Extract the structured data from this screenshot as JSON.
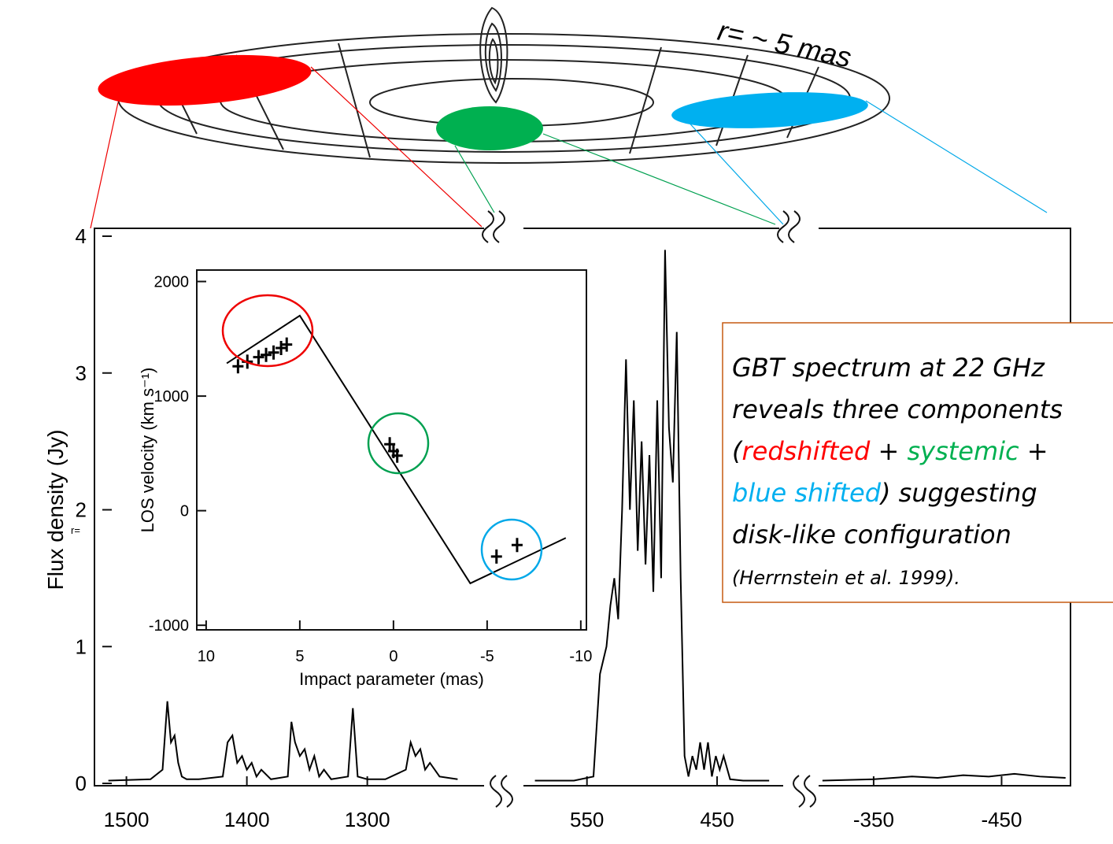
{
  "diagram": {
    "radius_label": "r= ~ 5 mas"
  },
  "stray_label": "r=",
  "text_box": {
    "lines": [
      [
        {
          "text": "GBT spectrum at 22 GHz",
          "color": "#000000"
        }
      ],
      [
        {
          "text": "reveals three components",
          "color": "#000000"
        }
      ],
      [
        {
          "text": "(",
          "color": "#000000"
        },
        {
          "text": "redshifted",
          "color": "#ff0000"
        },
        {
          "text": " + ",
          "color": "#000000"
        },
        {
          "text": "systemic",
          "color": "#00b050"
        },
        {
          "text": " +",
          "color": "#000000"
        }
      ],
      [
        {
          "text": "blue shifted",
          "color": "#00b0f0"
        },
        {
          "text": ") suggesting",
          "color": "#000000"
        }
      ],
      [
        {
          "text": "disk-like configuration",
          "color": "#000000"
        }
      ]
    ],
    "citation": "(Herrnstein et al. 1999).",
    "border_color": "#c55a11"
  },
  "chart_data": [
    {
      "type": "line",
      "y_label": "Flux density (Jy)",
      "ylim": [
        0,
        4
      ],
      "yticks": [
        0,
        1,
        2,
        3,
        4
      ],
      "xlim": [
        1520,
        1205
      ],
      "xticks": [
        1500,
        1400,
        1300
      ],
      "series": [
        {
          "color": "#000000",
          "x": [
            1515,
            1480,
            1470,
            1466,
            1463,
            1460,
            1457,
            1454,
            1450,
            1440,
            1420,
            1416,
            1412,
            1408,
            1404,
            1400,
            1396,
            1392,
            1388,
            1380,
            1366,
            1363,
            1360,
            1356,
            1352,
            1348,
            1344,
            1340,
            1336,
            1330,
            1316,
            1312,
            1308,
            1300,
            1285,
            1268,
            1264,
            1260,
            1256,
            1252,
            1248,
            1240,
            1225
          ],
          "values": [
            0.02,
            0.03,
            0.1,
            0.6,
            0.3,
            0.35,
            0.15,
            0.05,
            0.03,
            0.03,
            0.05,
            0.3,
            0.35,
            0.15,
            0.2,
            0.1,
            0.15,
            0.05,
            0.1,
            0.03,
            0.05,
            0.45,
            0.3,
            0.2,
            0.25,
            0.1,
            0.2,
            0.05,
            0.1,
            0.03,
            0.05,
            0.55,
            0.05,
            0.03,
            0.03,
            0.1,
            0.3,
            0.2,
            0.25,
            0.1,
            0.15,
            0.05,
            0.03
          ]
        }
      ]
    },
    {
      "type": "line",
      "ylim": [
        0,
        4
      ],
      "xlim": [
        597,
        398
      ],
      "xticks": [
        550,
        450
      ],
      "series": [
        {
          "color": "#000000",
          "x": [
            590,
            560,
            545,
            540,
            535,
            532,
            529,
            526,
            523,
            520,
            517,
            514,
            511,
            508,
            505,
            502,
            499,
            496,
            493,
            490,
            487,
            484,
            481,
            478,
            475,
            472,
            469,
            466,
            463,
            460,
            457,
            454,
            451,
            448,
            445,
            440,
            430,
            410
          ],
          "values": [
            0.02,
            0.02,
            0.05,
            0.8,
            1.0,
            1.3,
            1.5,
            1.2,
            2.0,
            3.1,
            2.0,
            2.8,
            1.7,
            2.5,
            1.6,
            2.4,
            1.4,
            2.8,
            1.5,
            3.9,
            2.6,
            2.2,
            3.3,
            1.5,
            0.2,
            0.05,
            0.2,
            0.1,
            0.3,
            0.1,
            0.3,
            0.05,
            0.2,
            0.1,
            0.2,
            0.03,
            0.02,
            0.02
          ]
        }
      ]
    },
    {
      "type": "line",
      "ylim": [
        0,
        4
      ],
      "xlim": [
        -307,
        -502
      ],
      "xticks": [
        -350,
        -450
      ],
      "series": [
        {
          "color": "#000000",
          "x": [
            -310,
            -350,
            -380,
            -400,
            -420,
            -440,
            -460,
            -480,
            -500
          ],
          "values": [
            0.02,
            0.03,
            0.05,
            0.04,
            0.06,
            0.05,
            0.07,
            0.05,
            0.04
          ]
        }
      ]
    },
    {
      "type": "line",
      "x_label": "Impact parameter (mas)",
      "y_label": "LOS velocity (km s⁻¹)",
      "xlim": [
        10.5,
        -10.3
      ],
      "xticks": [
        10,
        5,
        0,
        -5,
        -10
      ],
      "ylim": [
        -1040,
        2100
      ],
      "yticks": [
        2000,
        1000,
        0,
        -1000
      ],
      "series": [
        {
          "color": "#000000",
          "x": [
            8.9,
            5.0,
            -4.1,
            -9.2
          ],
          "values": [
            1286,
            1702,
            -634,
            -238
          ]
        },
        {
          "color": "#000000",
          "marker": "+",
          "x": [
            8.3,
            7.8,
            7.2,
            6.8,
            6.4,
            6.0,
            5.7,
            0.2,
            0.0,
            -0.2,
            -5.5,
            -6.6
          ],
          "values": [
            1260,
            1300,
            1340,
            1360,
            1380,
            1420,
            1450,
            580,
            520,
            480,
            -400,
            -300
          ]
        }
      ]
    }
  ]
}
